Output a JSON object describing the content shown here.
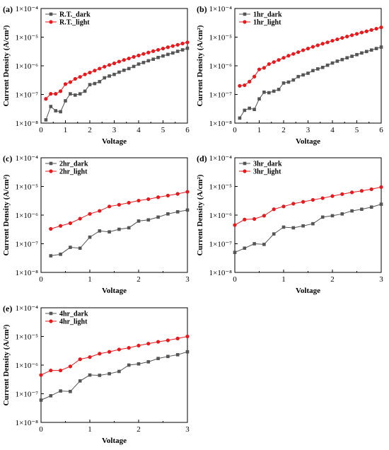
{
  "colors": {
    "dark": "#555555",
    "light": "#e8191c",
    "axis": "#000000"
  },
  "chart_data": [
    {
      "panel": "(a)",
      "type": "line",
      "log_y": true,
      "xlabel": "Voltage",
      "ylabel": "Current Density (A/cm²)",
      "xlim": [
        0,
        6
      ],
      "x_ticks": [
        0,
        1,
        2,
        3,
        4,
        5,
        6
      ],
      "ylim": [
        1e-08,
        0.0001
      ],
      "y_tick_labels": [
        "1×10⁻⁸",
        "1×10⁻⁷",
        "1×10⁻⁶",
        "1×10⁻⁵",
        "1×10⁻⁴"
      ],
      "legend_position": "top-left",
      "series": [
        {
          "name": "R.T._dark",
          "color_key": "dark",
          "marker": "square",
          "x": [
            0.2,
            0.4,
            0.6,
            0.8,
            1.0,
            1.2,
            1.4,
            1.6,
            1.8,
            2.0,
            2.2,
            2.4,
            2.6,
            2.8,
            3.0,
            3.2,
            3.4,
            3.6,
            3.8,
            4.0,
            4.2,
            4.4,
            4.6,
            4.8,
            5.0,
            5.2,
            5.4,
            5.6,
            5.8,
            6.0
          ],
          "y": [
            1.3e-08,
            3.8e-08,
            2.7e-08,
            2.5e-08,
            6e-08,
            1.05e-07,
            9.5e-08,
            1.05e-07,
            1.3e-07,
            2.2e-07,
            2.4e-07,
            2.8e-07,
            3.8e-07,
            4.4e-07,
            5e-07,
            6e-07,
            7e-07,
            8e-07,
            9.5e-07,
            1.15e-06,
            1.3e-06,
            1.5e-06,
            1.7e-06,
            1.95e-06,
            2.2e-06,
            2.5e-06,
            2.8e-06,
            3.2e-06,
            3.6e-06,
            4.1e-06
          ]
        },
        {
          "name": "R.T._light",
          "color_key": "light",
          "marker": "circle",
          "x": [
            0.2,
            0.4,
            0.6,
            0.8,
            1.0,
            1.2,
            1.4,
            1.6,
            1.8,
            2.0,
            2.2,
            2.4,
            2.6,
            2.8,
            3.0,
            3.2,
            3.4,
            3.6,
            3.8,
            4.0,
            4.2,
            4.4,
            4.6,
            4.8,
            5.0,
            5.2,
            5.4,
            5.6,
            5.8,
            6.0
          ],
          "y": [
            7e-08,
            1.05e-07,
            1.05e-07,
            1.3e-07,
            2.3e-07,
            2.7e-07,
            3.5e-07,
            4.1e-07,
            5e-07,
            5.8e-07,
            6.8e-07,
            8e-07,
            9.3e-07,
            1.07e-06,
            1.22e-06,
            1.4e-06,
            1.6e-06,
            1.8e-06,
            2.05e-06,
            2.3e-06,
            2.6e-06,
            2.9e-06,
            3.25e-06,
            3.6e-06,
            4e-06,
            4.45e-06,
            4.9e-06,
            5.4e-06,
            6e-06,
            6.6e-06
          ]
        }
      ]
    },
    {
      "panel": "(b)",
      "type": "line",
      "log_y": true,
      "xlabel": "Voltage",
      "ylabel": "Current Density (A/cm²)",
      "xlim": [
        0,
        6
      ],
      "x_ticks": [
        0,
        1,
        2,
        3,
        4,
        5,
        6
      ],
      "ylim": [
        1e-08,
        0.0001
      ],
      "y_tick_labels": [
        "1×10⁻⁸",
        "1×10⁻⁷",
        "1×10⁻⁶",
        "1×10⁻⁵",
        "1×10⁻⁴"
      ],
      "legend_position": "top-left",
      "series": [
        {
          "name": "1hr_dark",
          "color_key": "dark",
          "marker": "square",
          "x": [
            0.2,
            0.4,
            0.6,
            0.8,
            1.0,
            1.2,
            1.4,
            1.6,
            1.8,
            2.0,
            2.2,
            2.4,
            2.6,
            2.8,
            3.0,
            3.2,
            3.4,
            3.6,
            3.8,
            4.0,
            4.2,
            4.4,
            4.6,
            4.8,
            5.0,
            5.2,
            5.4,
            5.6,
            5.8,
            6.0
          ],
          "y": [
            1.5e-08,
            2.8e-08,
            3.3e-08,
            3e-08,
            7e-08,
            1.2e-07,
            1.15e-07,
            1.3e-07,
            1.5e-07,
            2.5e-07,
            2.7e-07,
            3.2e-07,
            4.2e-07,
            4.8e-07,
            5.5e-07,
            6.8e-07,
            7.8e-07,
            8.8e-07,
            1.05e-06,
            1.25e-06,
            1.45e-06,
            1.65e-06,
            1.9e-06,
            2.15e-06,
            2.45e-06,
            2.8e-06,
            3.15e-06,
            3.55e-06,
            4e-06,
            4.5e-06
          ]
        },
        {
          "name": "1hr_light",
          "color_key": "light",
          "marker": "circle",
          "x": [
            0.2,
            0.4,
            0.6,
            0.8,
            1.0,
            1.2,
            1.4,
            1.6,
            1.8,
            2.0,
            2.2,
            2.4,
            2.6,
            2.8,
            3.0,
            3.2,
            3.4,
            3.6,
            3.8,
            4.0,
            4.2,
            4.4,
            4.6,
            4.8,
            5.0,
            5.2,
            5.4,
            5.6,
            5.8,
            6.0
          ],
          "y": [
            2e-07,
            2.1e-07,
            2.8e-07,
            4.2e-07,
            7.5e-07,
            8.5e-07,
            1.15e-06,
            1.35e-06,
            1.6e-06,
            1.9e-06,
            2.25e-06,
            2.6e-06,
            3e-06,
            3.5e-06,
            4e-06,
            4.6e-06,
            5.2e-06,
            5.9e-06,
            6.6e-06,
            7.5e-06,
            8.4e-06,
            9.4e-06,
            1.05e-05,
            1.17e-05,
            1.3e-05,
            1.45e-05,
            1.6e-05,
            1.78e-05,
            1.97e-05,
            2.2e-05
          ]
        }
      ]
    },
    {
      "panel": "(c)",
      "type": "line",
      "log_y": true,
      "xlabel": "Voltage",
      "ylabel": "Current Density (A/cm²)",
      "xlim": [
        0,
        3
      ],
      "x_ticks": [
        0,
        1,
        2,
        3
      ],
      "ylim": [
        1e-08,
        0.0001
      ],
      "y_tick_labels": [
        "1×10⁻⁸",
        "1×10⁻⁷",
        "1×10⁻⁶",
        "1×10⁻⁵",
        "1×10⁻⁴"
      ],
      "legend_position": "top-left",
      "series": [
        {
          "name": "2hr_dark",
          "color_key": "dark",
          "marker": "square",
          "x": [
            0.2,
            0.4,
            0.6,
            0.8,
            1.0,
            1.2,
            1.4,
            1.6,
            1.8,
            2.0,
            2.2,
            2.4,
            2.6,
            2.8,
            3.0
          ],
          "y": [
            3.8e-08,
            4.3e-08,
            7.5e-08,
            7e-08,
            1.7e-07,
            2.8e-07,
            2.6e-07,
            3.2e-07,
            3.6e-07,
            6.2e-07,
            6.8e-07,
            8.5e-07,
            1.1e-06,
            1.3e-06,
            1.5e-06
          ]
        },
        {
          "name": "2hr_light",
          "color_key": "light",
          "marker": "circle",
          "x": [
            0.2,
            0.4,
            0.6,
            0.8,
            1.0,
            1.2,
            1.4,
            1.6,
            1.8,
            2.0,
            2.2,
            2.4,
            2.6,
            2.8,
            3.0
          ],
          "y": [
            3.3e-07,
            4.2e-07,
            5.2e-07,
            7.5e-07,
            1.1e-06,
            1.4e-06,
            2e-06,
            2.3e-06,
            2.7e-06,
            3.2e-06,
            3.6e-06,
            4.2e-06,
            4.8e-06,
            5.5e-06,
            6.5e-06
          ]
        }
      ]
    },
    {
      "panel": "(d)",
      "type": "line",
      "log_y": true,
      "xlabel": "Voltage",
      "ylabel": "Current Density (A/cm²)",
      "xlim": [
        0,
        3
      ],
      "x_ticks": [
        0,
        1,
        2,
        3
      ],
      "ylim": [
        1e-08,
        0.0001
      ],
      "y_tick_labels": [
        "1×10⁻⁸",
        "1×10⁻⁷",
        "1×10⁻⁶",
        "1×10⁻⁵",
        "1×10⁻⁴"
      ],
      "legend_position": "top-left",
      "series": [
        {
          "name": "3hr_dark",
          "color_key": "dark",
          "marker": "square",
          "x": [
            0.0,
            0.2,
            0.4,
            0.6,
            0.8,
            1.0,
            1.2,
            1.4,
            1.6,
            1.8,
            2.0,
            2.2,
            2.4,
            2.6,
            2.8,
            3.0
          ],
          "y": [
            5e-08,
            7e-08,
            1e-07,
            9.5e-08,
            2.2e-07,
            3.8e-07,
            3.6e-07,
            4.2e-07,
            5e-07,
            8.5e-07,
            9.5e-07,
            1.1e-06,
            1.4e-06,
            1.6e-06,
            1.9e-06,
            2.4e-06
          ]
        },
        {
          "name": "3hr_light",
          "color_key": "light",
          "marker": "circle",
          "x": [
            0.0,
            0.2,
            0.4,
            0.6,
            0.8,
            1.0,
            1.2,
            1.4,
            1.6,
            1.8,
            2.0,
            2.2,
            2.4,
            2.6,
            2.8,
            3.0
          ],
          "y": [
            4.5e-07,
            7e-07,
            7.3e-07,
            9.5e-07,
            1.6e-06,
            2e-06,
            2.5e-06,
            2.9e-06,
            3.4e-06,
            3.9e-06,
            4.6e-06,
            5.4e-06,
            6.2e-06,
            7e-06,
            8e-06,
            9.5e-06
          ]
        }
      ]
    },
    {
      "panel": "(e)",
      "type": "line",
      "log_y": true,
      "xlabel": "Voltage",
      "ylabel": "Current Density (A/cm²)",
      "xlim": [
        0,
        3
      ],
      "x_ticks": [
        0,
        1,
        2,
        3
      ],
      "ylim": [
        1e-08,
        0.0001
      ],
      "y_tick_labels": [
        "1×10⁻⁸",
        "1×10⁻⁷",
        "1×10⁻⁶",
        "1×10⁻⁵",
        "1×10⁻⁴"
      ],
      "legend_position": "top-left",
      "series": [
        {
          "name": "4hr_dark",
          "color_key": "dark",
          "marker": "square",
          "x": [
            0.0,
            0.2,
            0.4,
            0.6,
            0.8,
            1.0,
            1.2,
            1.4,
            1.6,
            1.8,
            2.0,
            2.2,
            2.4,
            2.6,
            2.8,
            3.0
          ],
          "y": [
            6e-08,
            8.5e-08,
            1.25e-07,
            1.2e-07,
            2.8e-07,
            4.5e-07,
            4.4e-07,
            5e-07,
            6e-07,
            1e-06,
            1.1e-06,
            1.3e-06,
            1.7e-06,
            2e-06,
            2.3e-06,
            2.9e-06
          ]
        },
        {
          "name": "4hr_light",
          "color_key": "light",
          "marker": "circle",
          "x": [
            0.0,
            0.2,
            0.4,
            0.6,
            0.8,
            1.0,
            1.2,
            1.4,
            1.6,
            1.8,
            2.0,
            2.2,
            2.4,
            2.6,
            2.8,
            3.0
          ],
          "y": [
            4.5e-07,
            6.5e-07,
            6.5e-07,
            9e-07,
            1.6e-06,
            1.9e-06,
            2.5e-06,
            2.9e-06,
            3.5e-06,
            4e-06,
            4.8e-06,
            5.6e-06,
            6.5e-06,
            7.3e-06,
            8.5e-06,
            1e-05
          ]
        }
      ]
    }
  ]
}
